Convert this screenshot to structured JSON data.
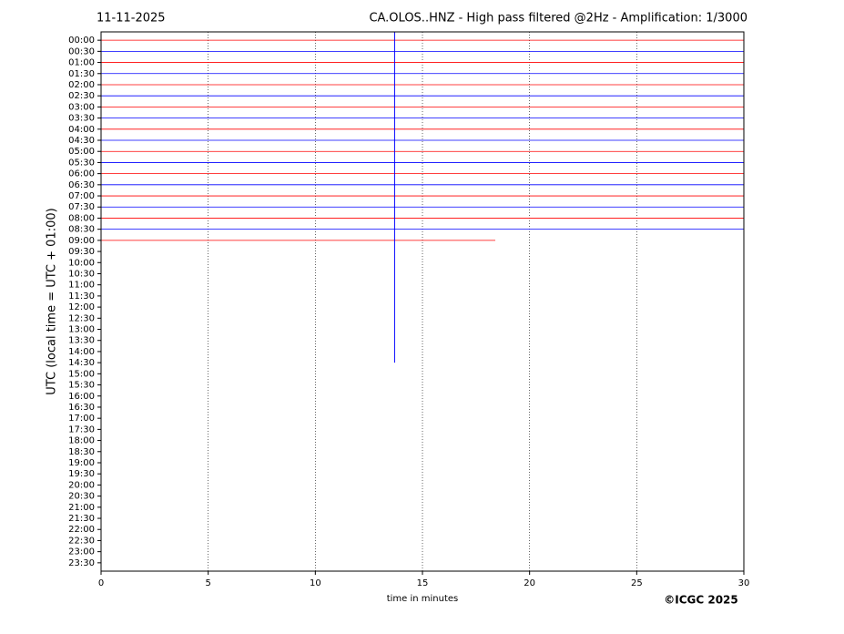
{
  "chart_data": {
    "type": "helicorder",
    "date": "11-11-2025",
    "title": "CA.OLOS..HNZ - High pass filtered @2Hz - Amplification: 1/3000",
    "ylabel": "UTC (local time = UTC + 01:00)",
    "xlabel": "time in minutes",
    "copyright": "©ICGC 2025",
    "categories": [
      "00:00",
      "00:30",
      "01:00",
      "01:30",
      "02:00",
      "02:30",
      "03:00",
      "03:30",
      "04:00",
      "04:30",
      "05:00",
      "05:30",
      "06:00",
      "06:30",
      "07:00",
      "07:30",
      "08:00",
      "08:30",
      "09:00",
      "09:30",
      "10:00",
      "10:30",
      "11:00",
      "11:30",
      "12:00",
      "12:30",
      "13:00",
      "13:30",
      "14:00",
      "14:30",
      "15:00",
      "15:30",
      "16:00",
      "16:30",
      "17:00",
      "17:30",
      "18:00",
      "18:30",
      "19:00",
      "19:30",
      "20:00",
      "20:30",
      "21:00",
      "21:30",
      "22:00",
      "22:30",
      "23:00",
      "23:30"
    ],
    "trace_colors": [
      "#ff0000",
      "#0000ff"
    ],
    "recorded_rows": 19,
    "last_row_end": 18.4,
    "spike_x": 13.7,
    "spike_end_row": 29,
    "xlim": [
      0,
      30
    ],
    "xticks": [
      0,
      5,
      10,
      15,
      20,
      25,
      30
    ],
    "grid": true
  }
}
